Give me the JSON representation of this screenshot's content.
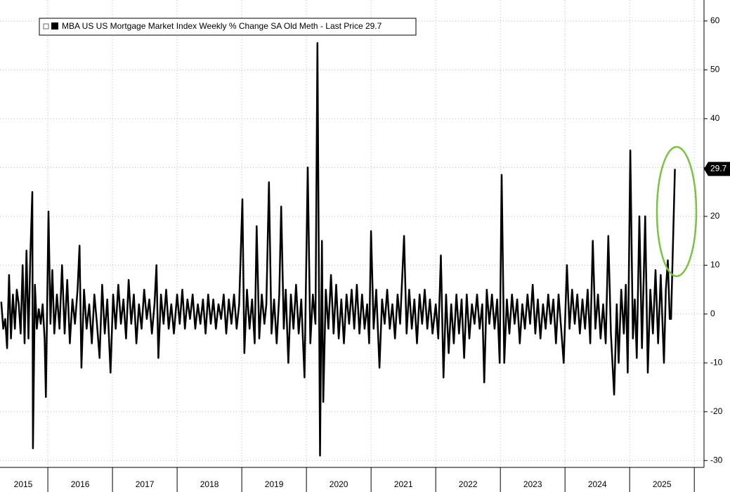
{
  "chart_data": {
    "type": "line",
    "series": [
      {
        "name": "MBA US US Mortgage Market Index Weekly % Change SA Old Meth - Last Price 29.7",
        "color": "#000000",
        "x": [
          2015.28,
          2015.31,
          2015.34,
          2015.37,
          2015.4,
          2015.43,
          2015.46,
          2015.49,
          2015.52,
          2015.55,
          2015.58,
          2015.61,
          2015.64,
          2015.67,
          2015.7,
          2015.73,
          2015.76,
          2015.77,
          2015.8,
          2015.83,
          2015.86,
          2015.89,
          2015.92,
          2015.95,
          2015.97,
          2016.01,
          2016.04,
          2016.07,
          2016.1,
          2016.14,
          2016.18,
          2016.22,
          2016.26,
          2016.3,
          2016.34,
          2016.38,
          2016.42,
          2016.46,
          2016.49,
          2016.52,
          2016.56,
          2016.6,
          2016.64,
          2016.68,
          2016.72,
          2016.76,
          2016.8,
          2016.84,
          2016.88,
          2016.92,
          2016.97,
          2017.01,
          2017.05,
          2017.09,
          2017.13,
          2017.17,
          2017.21,
          2017.25,
          2017.29,
          2017.33,
          2017.37,
          2017.41,
          2017.45,
          2017.49,
          2017.53,
          2017.57,
          2017.61,
          2017.65,
          2017.68,
          2017.71,
          2017.75,
          2017.79,
          2017.83,
          2017.87,
          2017.91,
          2017.95,
          2018.0,
          2018.04,
          2018.08,
          2018.12,
          2018.16,
          2018.2,
          2018.24,
          2018.28,
          2018.32,
          2018.36,
          2018.4,
          2018.44,
          2018.48,
          2018.52,
          2018.56,
          2018.6,
          2018.64,
          2018.68,
          2018.72,
          2018.76,
          2018.8,
          2018.84,
          2018.88,
          2018.92,
          2018.96,
          2019.01,
          2019.04,
          2019.08,
          2019.12,
          2019.16,
          2019.2,
          2019.23,
          2019.27,
          2019.31,
          2019.35,
          2019.38,
          2019.42,
          2019.46,
          2019.5,
          2019.54,
          2019.58,
          2019.61,
          2019.65,
          2019.68,
          2019.72,
          2019.76,
          2019.8,
          2019.84,
          2019.88,
          2019.92,
          2019.97,
          2020.02,
          2020.06,
          2020.1,
          2020.14,
          2020.17,
          2020.21,
          2020.24,
          2020.26,
          2020.3,
          2020.34,
          2020.38,
          2020.42,
          2020.46,
          2020.5,
          2020.54,
          2020.58,
          2020.62,
          2020.66,
          2020.7,
          2020.74,
          2020.78,
          2020.82,
          2020.86,
          2020.9,
          2020.94,
          2020.97,
          2021.0,
          2021.04,
          2021.08,
          2021.13,
          2021.17,
          2021.21,
          2021.25,
          2021.29,
          2021.33,
          2021.37,
          2021.41,
          2021.45,
          2021.51,
          2021.55,
          2021.59,
          2021.63,
          2021.67,
          2021.71,
          2021.75,
          2021.79,
          2021.83,
          2021.87,
          2021.91,
          2021.95,
          2022.0,
          2022.04,
          2022.08,
          2022.12,
          2022.16,
          2022.2,
          2022.24,
          2022.28,
          2022.32,
          2022.36,
          2022.4,
          2022.44,
          2022.48,
          2022.52,
          2022.56,
          2022.6,
          2022.64,
          2022.68,
          2022.72,
          2022.75,
          2022.79,
          2022.83,
          2022.87,
          2022.91,
          2022.95,
          2022.99,
          2023.02,
          2023.06,
          2023.1,
          2023.14,
          2023.18,
          2023.22,
          2023.26,
          2023.3,
          2023.34,
          2023.38,
          2023.42,
          2023.46,
          2023.5,
          2023.54,
          2023.58,
          2023.62,
          2023.66,
          2023.7,
          2023.74,
          2023.78,
          2023.82,
          2023.86,
          2023.9,
          2023.94,
          2023.98,
          2024.03,
          2024.07,
          2024.11,
          2024.15,
          2024.19,
          2024.23,
          2024.27,
          2024.31,
          2024.35,
          2024.39,
          2024.43,
          2024.47,
          2024.51,
          2024.55,
          2024.59,
          2024.63,
          2024.67,
          2024.71,
          2024.76,
          2024.8,
          2024.83,
          2024.87,
          2024.91,
          2024.94,
          2024.97,
          2025.01,
          2025.05,
          2025.08,
          2025.11,
          2025.15,
          2025.19,
          2025.24,
          2025.28,
          2025.32,
          2025.36,
          2025.4,
          2025.44,
          2025.48,
          2025.53,
          2025.56,
          2025.59,
          2025.62,
          2025.64,
          2025.7
        ],
        "values": [
          2.5,
          -3,
          -1,
          -7,
          8,
          -5,
          4,
          -3,
          5,
          2,
          -4,
          10,
          -6,
          13,
          -5,
          12,
          25,
          -27.5,
          6,
          -3,
          1,
          -2,
          2,
          -5,
          -17,
          21,
          -2,
          9,
          -4,
          4,
          -3,
          10,
          -4,
          7,
          -6,
          3,
          -2,
          5,
          14,
          -11,
          5,
          -3,
          2,
          -6,
          4,
          -2,
          -9,
          6,
          -4,
          3,
          -12,
          4,
          -3,
          6,
          -2,
          3,
          -5,
          7,
          -2,
          4,
          -6,
          2,
          -3,
          5,
          -1,
          3,
          -4,
          2,
          10,
          -9,
          4,
          -2,
          5,
          -3,
          2,
          -4,
          4,
          -2,
          5,
          -3,
          3,
          -1,
          4,
          -3,
          2,
          -2,
          3,
          -4,
          4,
          -2,
          3,
          -3,
          2,
          -1,
          4,
          -4,
          3,
          -2,
          4,
          -3,
          2,
          23.5,
          -8,
          5,
          -3,
          3,
          -6,
          18,
          -5,
          4,
          -2,
          2,
          27,
          -4,
          3,
          -6,
          4,
          22,
          -3,
          5,
          -10,
          4,
          -3,
          6,
          -4,
          3,
          -13,
          30,
          -6,
          4,
          -2,
          55.5,
          -29,
          15,
          -18,
          5,
          -3,
          8,
          -4,
          6,
          -5,
          3,
          -6,
          4,
          -2,
          5,
          -3,
          6,
          -4,
          4,
          -3,
          2,
          -6,
          17,
          -3,
          5,
          -11,
          3,
          -2,
          5,
          -3,
          2,
          -5,
          4,
          -2,
          16,
          -4,
          5,
          -3,
          3,
          -6,
          4,
          -2,
          5,
          -3,
          3,
          -4,
          2,
          -5,
          12,
          -13,
          4,
          -8,
          2,
          -6,
          4,
          -4,
          3,
          -9,
          4,
          -5,
          2,
          -2,
          4,
          -3,
          2,
          -14,
          5,
          -2,
          4,
          -3,
          3,
          -10,
          28.5,
          -10,
          3,
          -4,
          4,
          -2,
          3,
          -6,
          2,
          -3,
          4,
          -2,
          6,
          -4,
          3,
          -5,
          2,
          -3,
          4,
          -2,
          3,
          -6,
          4,
          -3,
          -10,
          10,
          -3,
          5,
          -2,
          4,
          -4,
          3,
          -3,
          5,
          -6,
          15,
          -3,
          4,
          -5,
          2,
          -6,
          16,
          -4,
          -16.5,
          2,
          -10,
          5,
          -4,
          6,
          -12,
          33.5,
          -5,
          3,
          -9,
          20,
          -7,
          20,
          -12,
          5,
          -4,
          9,
          -6,
          8,
          -10,
          5,
          11,
          -1,
          -1,
          29.7
        ]
      }
    ],
    "xlim": [
      2015.26,
      2026.15
    ],
    "xticks": [
      2016,
      2017,
      2018,
      2019,
      2020,
      2021,
      2022,
      2023,
      2024,
      2025,
      2026
    ],
    "xtick_labels": [
      {
        "value": 2015.5,
        "label": "2015"
      },
      {
        "value": 2016.5,
        "label": "2016"
      },
      {
        "value": 2017.5,
        "label": "2017"
      },
      {
        "value": 2018.5,
        "label": "2018"
      },
      {
        "value": 2019.5,
        "label": "2019"
      },
      {
        "value": 2020.5,
        "label": "2020"
      },
      {
        "value": 2021.5,
        "label": "2021"
      },
      {
        "value": 2022.5,
        "label": "2022"
      },
      {
        "value": 2023.5,
        "label": "2023"
      },
      {
        "value": 2024.5,
        "label": "2024"
      },
      {
        "value": 2025.5,
        "label": "2025"
      }
    ],
    "ylim": [
      -31.4,
      64.3
    ],
    "yticks": [
      -30,
      -20,
      -10,
      0,
      10,
      20,
      30,
      40,
      50,
      60
    ],
    "yaxis_side": "right",
    "grid": true
  }
}
